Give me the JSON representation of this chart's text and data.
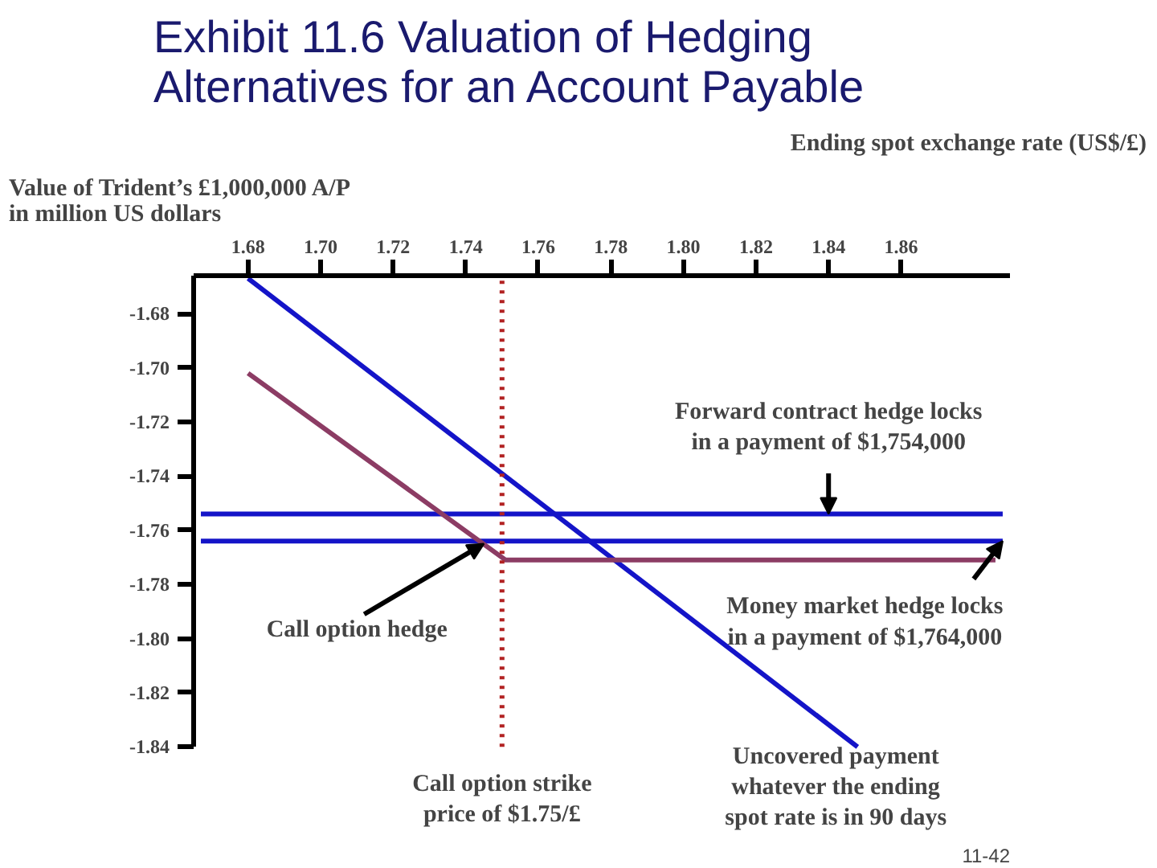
{
  "chart_data": {
    "type": "line",
    "title": "Exhibit 11.6  Valuation of Hedging\nAlternatives for an Account Payable",
    "ylabel": "Value of Trident’s £1,000,000 A/P\nin million US  dollars",
    "xlabel": "Ending spot exchange rate (US$/£)",
    "series": [
      {
        "color": "#1414c8",
        "x": [
          1.68,
          1.848
        ],
        "values": [
          -1.667,
          -1.84
        ]
      },
      {
        "color": "#1414c8",
        "x": [
          1.667,
          1.888
        ],
        "values": [
          -1.754,
          -1.754
        ]
      },
      {
        "color": "#1414c8",
        "x": [
          1.667,
          1.888
        ],
        "values": [
          -1.764,
          -1.764
        ]
      },
      {
        "color": "#8c3c64",
        "x": [
          1.68,
          1.751,
          1.886
        ],
        "values": [
          -1.702,
          -1.771,
          -1.771
        ]
      }
    ],
    "ref_lines": [
      {
        "axis": "x",
        "value": 1.75,
        "label": "Call option strike\nprice of $1.75/£",
        "color": "#b22222",
        "line_style": "dotted"
      }
    ],
    "annotations": [
      {
        "text": "Forward contract hedge locks\nin a payment of $1,754,000",
        "x": 1.84,
        "y": -1.754
      },
      {
        "text": "Money market hedge locks\nin a payment of $1,764,000",
        "x": 1.888,
        "y": -1.764
      },
      {
        "text": "Call option hedge",
        "x": 1.745,
        "y": -1.765
      },
      "Uncovered payment\nwhatever the ending\nspot rate is in 90 days",
      "11-42"
    ],
    "xlim": [
      1.665,
      1.89
    ],
    "ylim": [
      -1.84,
      -1.666
    ],
    "xticks": [
      1.68,
      {
        "value": 1.7,
        "label": "1.70"
      },
      1.72,
      1.74,
      1.76,
      1.78,
      {
        "value": 1.8,
        "label": "1.80"
      },
      1.82,
      1.84,
      1.86
    ],
    "yticks": [
      -1.68,
      {
        "value": -1.7,
        "label": "-1.70"
      },
      -1.72,
      -1.74,
      -1.76,
      -1.78,
      {
        "value": -1.8,
        "label": "-1.80"
      },
      -1.82,
      -1.84
    ],
    "grid": false,
    "marker": "none",
    "line_style": "solid"
  }
}
